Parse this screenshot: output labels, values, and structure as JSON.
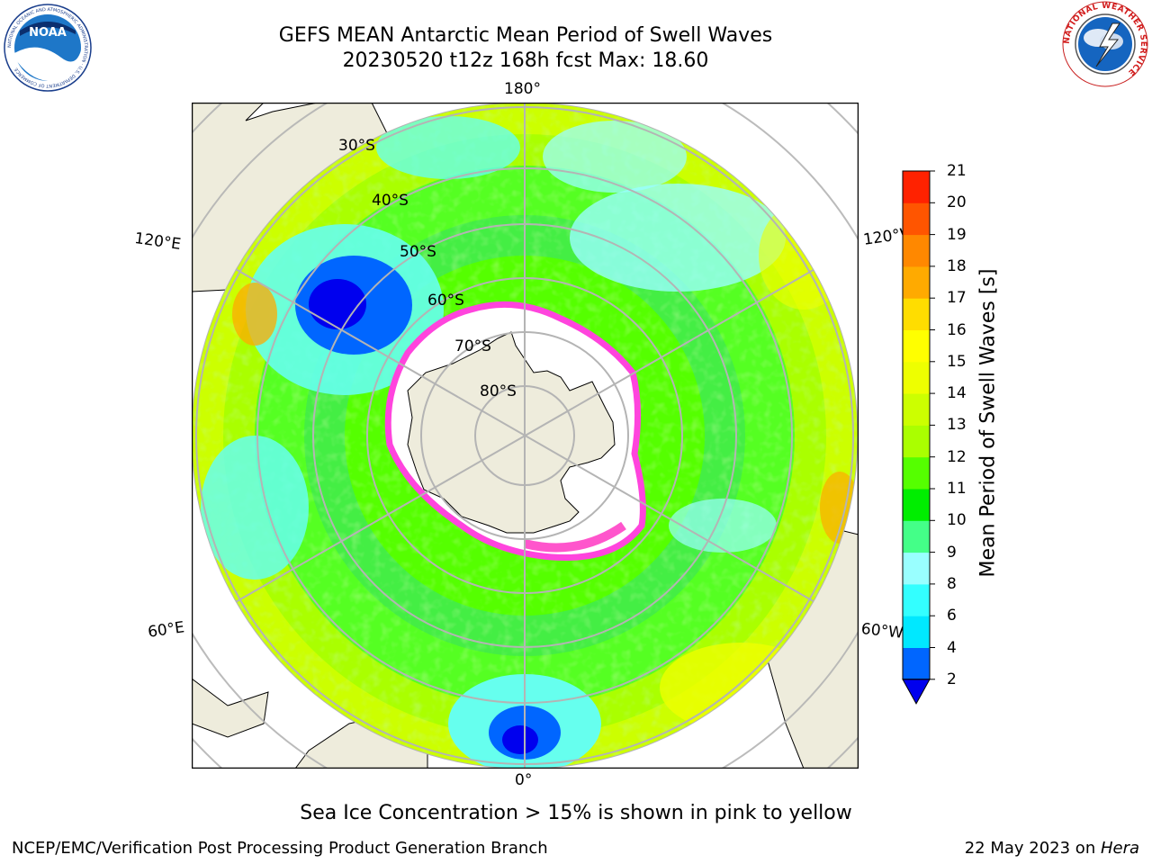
{
  "header": {
    "title_line1": "GEFS MEAN Antarctic Mean Period of Swell Waves",
    "title_line2": "20230520 t12z 168h fcst   Max: 18.60",
    "left_logo_text": "NOAA",
    "left_logo_ring_text": "NATIONAL OCEANIC AND ATMOSPHERIC ADMINISTRATION · U.S. DEPARTMENT OF COMMERCE",
    "right_logo_ring_text": "NATIONAL WEATHER SERVICE"
  },
  "map": {
    "meridian_labels": {
      "top": "180°",
      "bottom": "0°",
      "left_upper": "120°E",
      "left_lower": "60°E",
      "right_upper": "120°W",
      "right_lower": "60°W"
    },
    "latitude_labels": [
      "30°S",
      "40°S",
      "50°S",
      "60°S",
      "70°S",
      "80°S"
    ],
    "colors": {
      "land": "#eeecdc",
      "ice_edge": "#ff44dd",
      "gridline": "#b4b4b4"
    }
  },
  "colorbar": {
    "label": "Mean Period of Swell Waves [s]",
    "ticks": [
      "2",
      "4",
      "6",
      "8",
      "9",
      "10",
      "11",
      "12",
      "13",
      "14",
      "15",
      "16",
      "17",
      "18",
      "19",
      "20",
      "21"
    ],
    "colors": [
      "#0066ff",
      "#00e8ff",
      "#33ffff",
      "#99ffff",
      "#44ff88",
      "#00ee00",
      "#55ff00",
      "#aaff00",
      "#ccff00",
      "#eeff00",
      "#ffff00",
      "#ffdd00",
      "#ffaa00",
      "#ff8800",
      "#ff5500",
      "#ff2200"
    ],
    "under_color": "#0000ee"
  },
  "footer": {
    "note": "Sea Ice Concentration > 15% is shown in pink to yellow",
    "left": "NCEP/EMC/Verification Post Processing Product Generation Branch",
    "right_prefix": "22 May 2023 on ",
    "right_italic": "Hera"
  }
}
